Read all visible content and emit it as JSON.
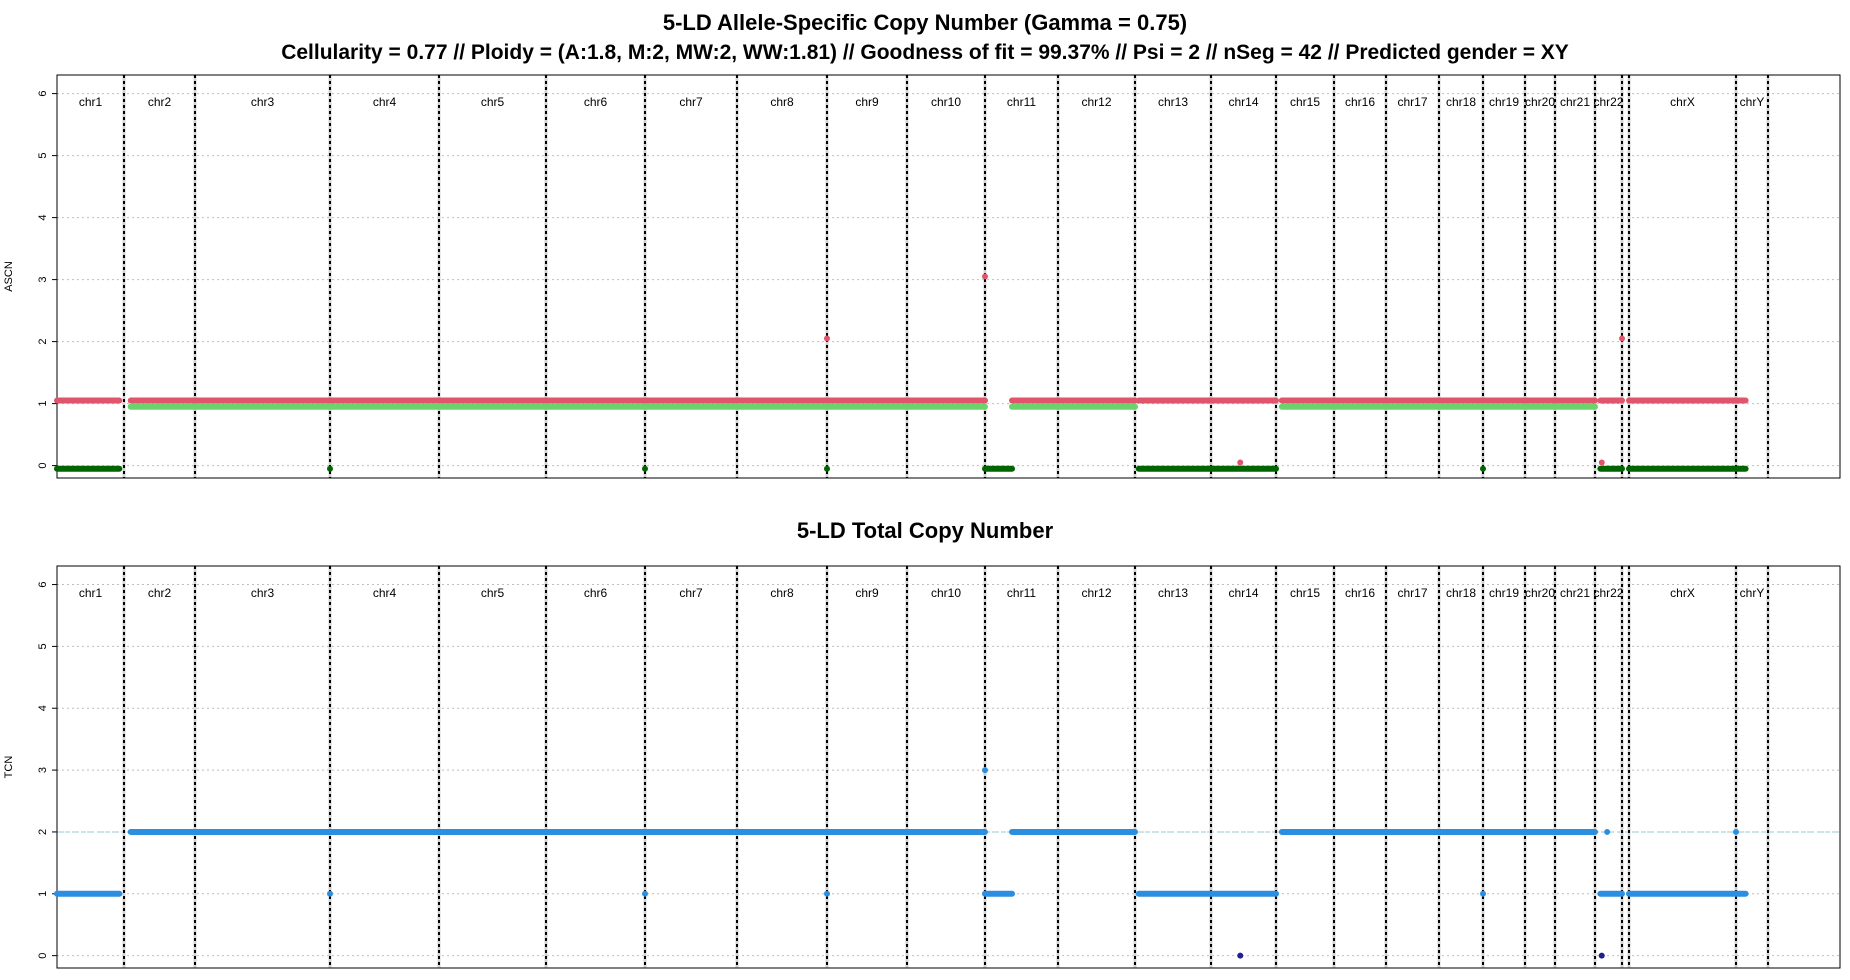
{
  "colors": {
    "major": "#e0556b",
    "minor": "#6bd36b",
    "lost": "#006400",
    "tcn": "#2a8fe0",
    "tcn_zero": "#202090",
    "ploidy_line": "#87cef0",
    "chr_boundary": "#000000",
    "chr_fill_boundary": "#d3d3d3",
    "grid": "#bebebe"
  },
  "chart_data": [
    {
      "type": "scatter",
      "title": "5-LD Allele-Specific Copy Number (Gamma = 0.75)",
      "subtitle": "Cellularity = 0.77 // Ploidy = (A:1.8, M:2, MW:2, WW:1.81) // Goodness of fit = 99.37% // Psi = 2 // nSeg = 42 // Predicted gender = XY",
      "xlabel": "",
      "ylabel": "ASCN",
      "ylim": [
        -0.2,
        6.3
      ],
      "yticks": [
        "0",
        "1",
        "2",
        "3",
        "4",
        "5",
        "6"
      ],
      "grid": true,
      "chromosomes": [
        "chr1",
        "chr2",
        "chr3",
        "chr4",
        "chr5",
        "chr6",
        "chr7",
        "chr8",
        "chr9",
        "chr10",
        "chr11",
        "chr12",
        "chr13",
        "chr14",
        "chr15",
        "chr16",
        "chr17",
        "chr18",
        "chr19",
        "chr20",
        "chr21",
        "chr22",
        "chrX",
        "chrY"
      ],
      "series": [
        {
          "color_key": "major",
          "segments": [
            {
              "chr": "chr1",
              "from": 0,
              "to": 0.93,
              "y": 1.05
            },
            {
              "chr": "chr1",
              "from": 1.1,
              "to": 1.0,
              "y": 1.05,
              "span": "chr1-chr10"
            },
            {
              "chr": "chr11",
              "from": 0.37,
              "to": 1.0,
              "y": 1.05
            },
            {
              "chr": "chr12",
              "from": 0,
              "to": 1.0,
              "y": 1.05
            },
            {
              "chr": "chr13",
              "from": 0.05,
              "to": 1.0,
              "y": 1.05
            },
            {
              "chr": "chr14",
              "from": 0,
              "to": 1.0,
              "y": 1.05
            },
            {
              "chr": "chr15",
              "from": 0.1,
              "to": 1.0,
              "y": 1.05,
              "span": "chr15-chr20"
            },
            {
              "chr": "chr21",
              "from": 0,
              "to": 1.0,
              "y": 1.05
            },
            {
              "chr": "chr22",
              "from": 0.2,
              "to": 1.0,
              "y": 1.05
            },
            {
              "chr": "chrX",
              "from": 0,
              "to": 1.0,
              "y": 1.05
            },
            {
              "chr": "chrY",
              "from": 0,
              "to": 0.3,
              "y": 1.05
            }
          ],
          "points": [
            {
              "chr": "chr8",
              "pos": 1.0,
              "y": 2.05
            },
            {
              "chr": "chr10",
              "pos": 1.0,
              "y": 3.05
            },
            {
              "chr": "chr22",
              "pos": 1.0,
              "y": 2.05
            }
          ]
        },
        {
          "color_key": "minor",
          "segments": [
            {
              "chr": "chr1",
              "from": 1.1,
              "to": 1.0,
              "y": 0.95,
              "span": "chr1-chr10"
            },
            {
              "chr": "chr11",
              "from": 0.37,
              "to": 1.0,
              "y": 0.95
            },
            {
              "chr": "chr12",
              "from": 0,
              "to": 1.0,
              "y": 0.95
            },
            {
              "chr": "chr15",
              "from": 0.1,
              "to": 1.0,
              "y": 0.95,
              "span": "chr15-chr20"
            },
            {
              "chr": "chr21",
              "from": 0,
              "to": 1.0,
              "y": 0.95
            }
          ]
        },
        {
          "color_key": "lost",
          "segments": [
            {
              "chr": "chr1",
              "from": 0,
              "to": 0.93,
              "y": -0.05
            },
            {
              "chr": "chr11",
              "from": 0,
              "to": 0.37,
              "y": -0.05
            },
            {
              "chr": "chr13",
              "from": 0.05,
              "to": 1.0,
              "y": -0.05
            },
            {
              "chr": "chr14",
              "from": 0,
              "to": 1.0,
              "y": -0.05
            },
            {
              "chr": "chr22",
              "from": 0.2,
              "to": 1.0,
              "y": -0.05
            },
            {
              "chr": "chrX",
              "from": 0,
              "to": 1.0,
              "y": -0.05
            },
            {
              "chr": "chrY",
              "from": 0,
              "to": 0.3,
              "y": -0.05
            }
          ],
          "points": [
            {
              "chr": "chr3",
              "pos": 1.0,
              "y": -0.05
            },
            {
              "chr": "chr6",
              "pos": 1.0,
              "y": -0.05
            },
            {
              "chr": "chr8",
              "pos": 1.0,
              "y": -0.05
            },
            {
              "chr": "chr19",
              "pos": 0.0,
              "y": -0.05
            },
            {
              "chr": "chr14",
              "pos": 0.45,
              "y": 0.05,
              "color_key": "major"
            },
            {
              "chr": "chr22",
              "pos": 0.25,
              "y": 0.05,
              "color_key": "major"
            }
          ]
        }
      ]
    },
    {
      "type": "scatter",
      "title": "5-LD Total Copy Number",
      "xlabel": "",
      "ylabel": "TCN",
      "ylim": [
        -0.2,
        6.3
      ],
      "yticks": [
        "0",
        "1",
        "2",
        "3",
        "4",
        "5",
        "6"
      ],
      "grid": true,
      "ploidy_line": 2,
      "chromosomes": [
        "chr1",
        "chr2",
        "chr3",
        "chr4",
        "chr5",
        "chr6",
        "chr7",
        "chr8",
        "chr9",
        "chr10",
        "chr11",
        "chr12",
        "chr13",
        "chr14",
        "chr15",
        "chr16",
        "chr17",
        "chr18",
        "chr19",
        "chr20",
        "chr21",
        "chr22",
        "chrX",
        "chrY"
      ],
      "series": [
        {
          "color_key": "tcn",
          "segments": [
            {
              "chr": "chr1",
              "from": 0,
              "to": 0.93,
              "y": 1
            },
            {
              "chr": "chr1",
              "from": 1.1,
              "to": 1.0,
              "y": 2,
              "span": "chr1-chr10"
            },
            {
              "chr": "chr11",
              "from": 0,
              "to": 0.37,
              "y": 1
            },
            {
              "chr": "chr11",
              "from": 0.37,
              "to": 1.0,
              "y": 2
            },
            {
              "chr": "chr12",
              "from": 0,
              "to": 1.0,
              "y": 2
            },
            {
              "chr": "chr13",
              "from": 0.05,
              "to": 1.0,
              "y": 1
            },
            {
              "chr": "chr14",
              "from": 0,
              "to": 1.0,
              "y": 1
            },
            {
              "chr": "chr15",
              "from": 0.1,
              "to": 1.0,
              "y": 2,
              "span": "chr15-chr20"
            },
            {
              "chr": "chr21",
              "from": 0,
              "to": 1.0,
              "y": 2
            },
            {
              "chr": "chr22",
              "from": 0.2,
              "to": 1.0,
              "y": 1
            },
            {
              "chr": "chrX",
              "from": 0,
              "to": 1.0,
              "y": 1
            },
            {
              "chr": "chrY",
              "from": 0,
              "to": 0.3,
              "y": 1
            }
          ],
          "points": [
            {
              "chr": "chr3",
              "pos": 1.0,
              "y": 1
            },
            {
              "chr": "chr6",
              "pos": 1.0,
              "y": 1
            },
            {
              "chr": "chr8",
              "pos": 1.0,
              "y": 1
            },
            {
              "chr": "chr10",
              "pos": 1.0,
              "y": 3
            },
            {
              "chr": "chr19",
              "pos": 0.0,
              "y": 1
            },
            {
              "chr": "chr22",
              "pos": 0.45,
              "y": 2
            },
            {
              "chr": "chrX",
              "pos": 1.0,
              "y": 2
            },
            {
              "chr": "chr14",
              "pos": 0.45,
              "y": 0,
              "color_key": "tcn_zero"
            },
            {
              "chr": "chr22",
              "pos": 0.25,
              "y": 0,
              "color_key": "tcn_zero"
            }
          ]
        }
      ]
    }
  ]
}
